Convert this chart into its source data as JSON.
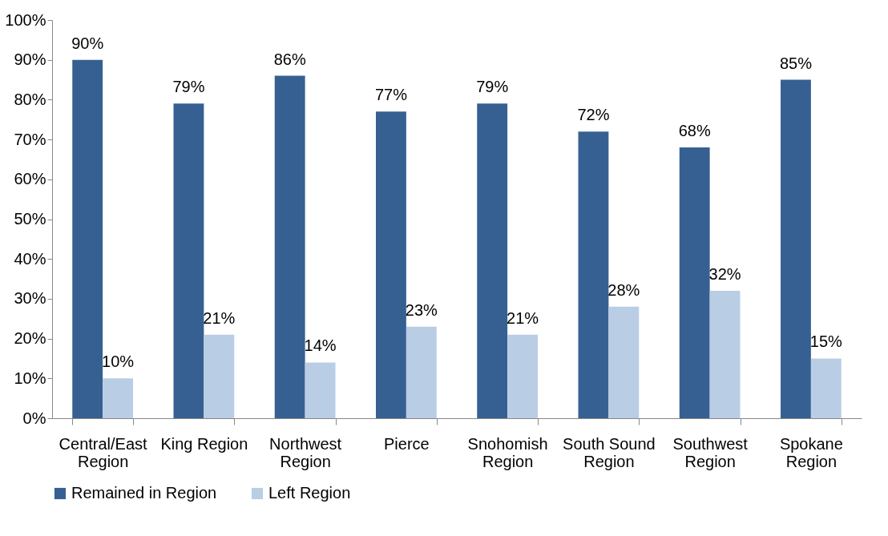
{
  "chart_data": {
    "type": "bar",
    "categories": [
      "Central/East Region",
      "King Region",
      "Northwest Region",
      "Pierce",
      "Snohomish Region",
      "South Sound Region",
      "Southwest Region",
      "Spokane Region"
    ],
    "series": [
      {
        "name": "Remained in Region",
        "color": "#376092",
        "values": [
          90,
          79,
          86,
          77,
          79,
          72,
          68,
          85
        ],
        "value_labels": [
          "90%",
          "79%",
          "86%",
          "77%",
          "79%",
          "72%",
          "68%",
          "85%"
        ]
      },
      {
        "name": "Left Region",
        "color": "#b9cde5",
        "values": [
          10,
          21,
          14,
          23,
          21,
          28,
          32,
          15
        ],
        "value_labels": [
          "10%",
          "21%",
          "14%",
          "23%",
          "21%",
          "28%",
          "32%",
          "15%"
        ]
      }
    ],
    "ylim": [
      0,
      100
    ],
    "yticks": [
      {
        "value": 0,
        "label": "0%"
      },
      {
        "value": 10,
        "label": "10%"
      },
      {
        "value": 20,
        "label": "20%"
      },
      {
        "value": 30,
        "label": "30%"
      },
      {
        "value": 40,
        "label": "40%"
      },
      {
        "value": 50,
        "label": "50%"
      },
      {
        "value": 60,
        "label": "60%"
      },
      {
        "value": 70,
        "label": "70%"
      },
      {
        "value": 80,
        "label": "80%"
      },
      {
        "value": 90,
        "label": "90%"
      },
      {
        "value": 100,
        "label": "100%"
      }
    ],
    "grid": false,
    "legend": "bottom"
  }
}
